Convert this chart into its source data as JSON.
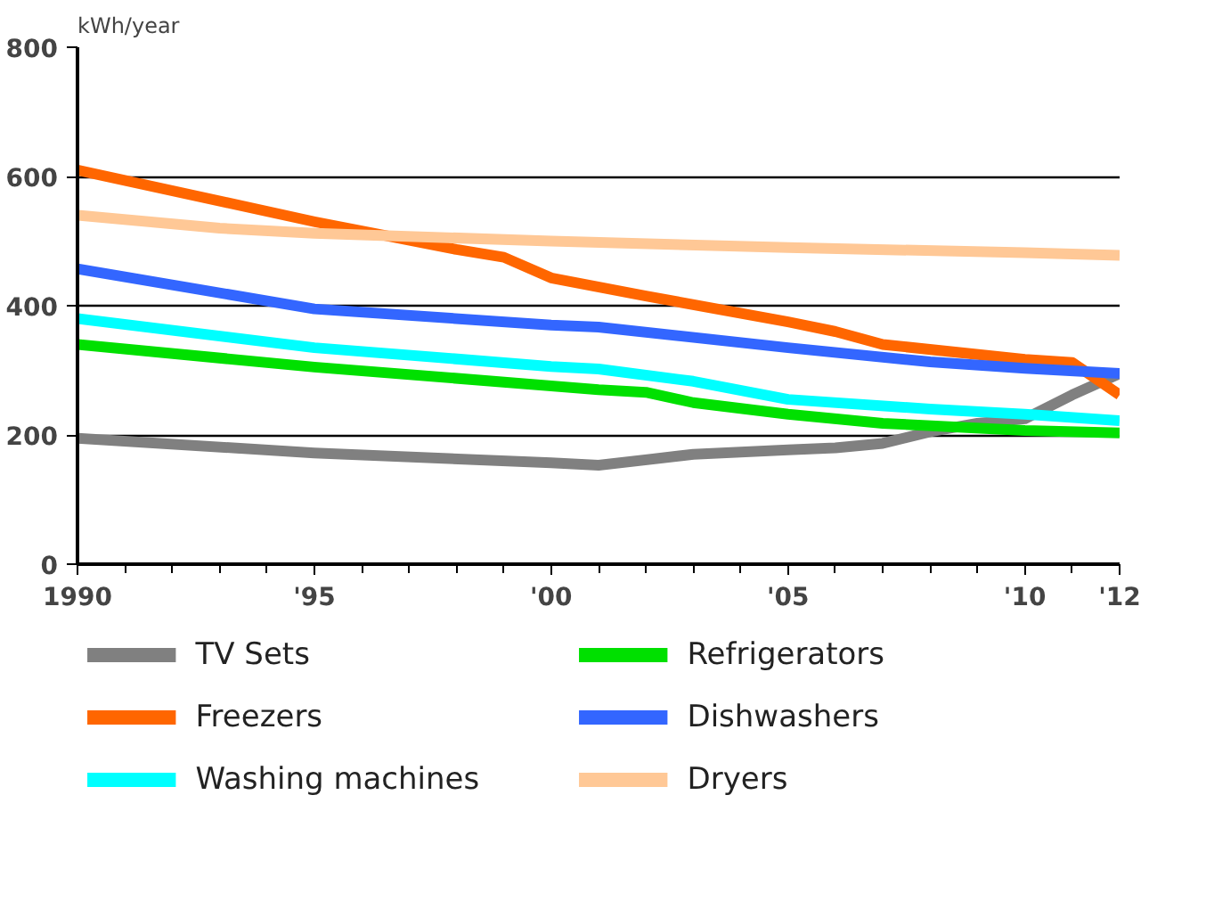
{
  "chart_data": {
    "type": "line",
    "ylabel": "kWh/year",
    "xlim": [
      1990,
      2012
    ],
    "ylim": [
      0,
      800
    ],
    "xticks": [
      1990,
      {
        "value": 1995,
        "label": "'95"
      },
      {
        "value": 2000,
        "label": "'00"
      },
      {
        "value": 2005,
        "label": "'05"
      },
      {
        "value": 2010,
        "label": "'10"
      },
      {
        "value": 2012,
        "label": "'12"
      }
    ],
    "yticks": [
      0,
      200,
      400,
      600,
      800
    ],
    "grid": "y",
    "legend": "bottom",
    "marker": "none",
    "line_style": "solid",
    "series": [
      {
        "name": "TV Sets",
        "color": "#808080",
        "x": [
          1990,
          1995,
          2000,
          2001,
          2003,
          2005,
          2006,
          2007,
          2008,
          2009,
          2010,
          2011,
          2012
        ],
        "values": [
          195,
          172,
          157,
          153,
          170,
          177,
          180,
          187,
          205,
          218,
          225,
          262,
          295
        ]
      },
      {
        "name": "Refrigerators",
        "color": "#00e000",
        "x": [
          1990,
          1995,
          2000,
          2001,
          2002,
          2003,
          2005,
          2007,
          2010,
          2012
        ],
        "values": [
          340,
          305,
          276,
          270,
          266,
          250,
          232,
          218,
          207,
          203
        ]
      },
      {
        "name": "Freezers",
        "color": "#ff6600",
        "x": [
          1990,
          1995,
          1998,
          1999,
          2000,
          2002,
          2005,
          2006,
          2007,
          2010,
          2011,
          2012
        ],
        "values": [
          610,
          530,
          487,
          475,
          443,
          415,
          375,
          360,
          340,
          317,
          312,
          262
        ]
      },
      {
        "name": "Dishwashers",
        "color": "#3366ff",
        "x": [
          1990,
          1995,
          2000,
          2001,
          2005,
          2008,
          2010,
          2012
        ],
        "values": [
          457,
          395,
          370,
          367,
          335,
          313,
          303,
          295
        ]
      },
      {
        "name": "Washing machines",
        "color": "#00ffff",
        "x": [
          1990,
          1995,
          2000,
          2001,
          2003,
          2005,
          2008,
          2010,
          2012
        ],
        "values": [
          380,
          335,
          306,
          302,
          283,
          255,
          240,
          232,
          222
        ]
      },
      {
        "name": "Dryers",
        "color": "#ffc896",
        "x": [
          1990,
          1993,
          1995,
          2000,
          2005,
          2010,
          2012
        ],
        "values": [
          540,
          520,
          512,
          500,
          490,
          482,
          478
        ]
      }
    ]
  }
}
